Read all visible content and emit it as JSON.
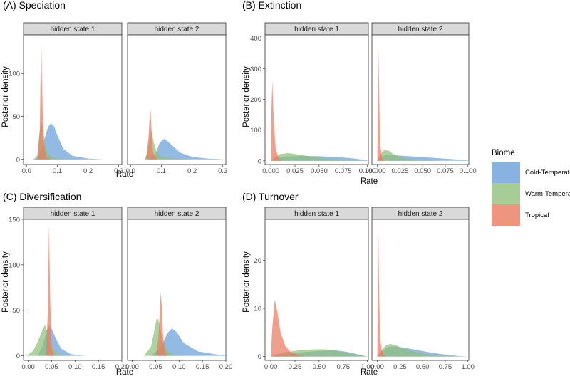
{
  "colors": {
    "Cold-Temperate": "#6a9fd8",
    "Warm-Temperate": "#8fc07a",
    "Tropical": "#ea7a60"
  },
  "legend": {
    "title": "Biome",
    "items": [
      "Cold-Temperate",
      "Warm-Temperate",
      "Tropical"
    ]
  },
  "chart_data": [
    {
      "type": "area",
      "title": "(A) Speciation",
      "xlabel": "Rate",
      "ylabel": "Posterior density",
      "xlim": [
        -0.01,
        0.31
      ],
      "ylim": [
        -6,
        145
      ],
      "xticks": [
        0.0,
        0.1,
        0.2,
        0.3
      ],
      "xtick_labels": [
        "0.0",
        "0.1",
        "0.2",
        "0.3"
      ],
      "yticks": [
        0,
        50,
        100
      ],
      "facets": [
        {
          "label": "hidden state 1",
          "series": [
            {
              "name": "Cold-Temperate",
              "x": [
                0.02,
                0.04,
                0.055,
                0.07,
                0.08,
                0.09,
                0.1,
                0.12,
                0.15,
                0.2,
                0.25
              ],
              "y": [
                0,
                3,
                20,
                38,
                42,
                38,
                28,
                12,
                4,
                1,
                0
              ]
            },
            {
              "name": "Warm-Temperate",
              "x": [
                0.025,
                0.035,
                0.042,
                0.047,
                0.052,
                0.06,
                0.07,
                0.09,
                0.12,
                0.2
              ],
              "y": [
                0,
                5,
                30,
                44,
                40,
                18,
                6,
                1.5,
                0.5,
                0
              ]
            },
            {
              "name": "Tropical",
              "x": [
                0.035,
                0.043,
                0.046,
                0.048,
                0.05,
                0.055,
                0.065,
                0.08
              ],
              "y": [
                0,
                35,
                110,
                135,
                90,
                20,
                2,
                0
              ]
            }
          ]
        },
        {
          "label": "hidden state 2",
          "series": [
            {
              "name": "Cold-Temperate",
              "x": [
                0.06,
                0.08,
                0.095,
                0.11,
                0.13,
                0.16,
                0.2,
                0.25,
                0.3
              ],
              "y": [
                0,
                5,
                20,
                24,
                18,
                8,
                3,
                1,
                0.2
              ]
            },
            {
              "name": "Warm-Temperate",
              "x": [
                0.045,
                0.055,
                0.062,
                0.068,
                0.075,
                0.085,
                0.1,
                0.14,
                0.2
              ],
              "y": [
                0,
                8,
                25,
                33,
                20,
                8,
                3,
                1,
                0
              ]
            },
            {
              "name": "Tropical",
              "x": [
                0.05,
                0.058,
                0.062,
                0.065,
                0.068,
                0.073,
                0.085
              ],
              "y": [
                0,
                25,
                50,
                58,
                35,
                8,
                0
              ]
            }
          ]
        }
      ]
    },
    {
      "type": "area",
      "title": "(B) Extinction",
      "xlabel": "Rate",
      "ylabel": "Posterior density",
      "xlim": [
        -0.006,
        0.101
      ],
      "ylim": [
        -12,
        410
      ],
      "xticks": [
        0.0,
        0.025,
        0.05,
        0.075,
        0.1
      ],
      "xtick_labels": [
        "0.000",
        "0.025",
        "0.050",
        "0.075",
        "0.100"
      ],
      "yticks": [
        0,
        100,
        200,
        300,
        400
      ],
      "facets": [
        {
          "label": "hidden state 1",
          "series": [
            {
              "name": "Cold-Temperate",
              "x": [
                0.0,
                0.005,
                0.015,
                0.03,
                0.05,
                0.07,
                0.085,
                0.1
              ],
              "y": [
                0,
                8,
                14,
                16,
                15,
                12,
                8,
                2
              ]
            },
            {
              "name": "Warm-Temperate",
              "x": [
                0.0,
                0.004,
                0.01,
                0.018,
                0.03,
                0.045,
                0.06,
                0.08,
                0.1
              ],
              "y": [
                0,
                12,
                22,
                25,
                20,
                12,
                6,
                2,
                0
              ]
            },
            {
              "name": "Tropical",
              "x": [
                0.0,
                0.0005,
                0.0015,
                0.003,
                0.005,
                0.008,
                0.012
              ],
              "y": [
                0,
                150,
                260,
                130,
                40,
                8,
                0
              ]
            }
          ]
        },
        {
          "label": "hidden state 2",
          "series": [
            {
              "name": "Cold-Temperate",
              "x": [
                0.0,
                0.004,
                0.01,
                0.02,
                0.04,
                0.06,
                0.08,
                0.1
              ],
              "y": [
                0,
                14,
                20,
                18,
                14,
                10,
                6,
                2
              ]
            },
            {
              "name": "Warm-Temperate",
              "x": [
                0.0,
                0.003,
                0.008,
                0.013,
                0.02,
                0.03,
                0.05,
                0.07
              ],
              "y": [
                0,
                20,
                36,
                32,
                18,
                8,
                2,
                0
              ]
            },
            {
              "name": "Tropical",
              "x": [
                0.0,
                0.0005,
                0.001,
                0.002,
                0.003,
                0.005,
                0.008
              ],
              "y": [
                0,
                200,
                380,
                220,
                60,
                10,
                0
              ]
            }
          ]
        }
      ]
    },
    {
      "type": "area",
      "title": "(C) Diversification",
      "xlabel": "Rate",
      "ylabel": "Posterior density",
      "xlim": [
        -0.01,
        0.2
      ],
      "ylim": [
        -5,
        150
      ],
      "xticks": [
        0.0,
        0.05,
        0.1,
        0.15,
        0.2
      ],
      "xtick_labels": [
        "0.00",
        "0.05",
        "0.10",
        "0.15",
        "0.20"
      ],
      "yticks": [
        0,
        50,
        100,
        150
      ],
      "facets": [
        {
          "label": "hidden state 1",
          "series": [
            {
              "name": "Cold-Temperate",
              "x": [
                0.02,
                0.03,
                0.04,
                0.045,
                0.05,
                0.06,
                0.07,
                0.09,
                0.12
              ],
              "y": [
                0,
                10,
                28,
                33,
                30,
                18,
                8,
                2,
                0
              ]
            },
            {
              "name": "Warm-Temperate",
              "x": [
                -0.005,
                0.01,
                0.02,
                0.03,
                0.036,
                0.042,
                0.05,
                0.06,
                0.08
              ],
              "y": [
                0,
                5,
                15,
                28,
                34,
                25,
                10,
                3,
                0
              ]
            },
            {
              "name": "Tropical",
              "x": [
                0.038,
                0.042,
                0.0445,
                0.047,
                0.05,
                0.054
              ],
              "y": [
                0,
                50,
                143,
                60,
                10,
                0
              ]
            }
          ]
        },
        {
          "label": "hidden state 2",
          "series": [
            {
              "name": "Cold-Temperate",
              "x": [
                0.04,
                0.06,
                0.075,
                0.085,
                0.095,
                0.11,
                0.14,
                0.18,
                0.2
              ],
              "y": [
                0,
                8,
                25,
                30,
                26,
                14,
                5,
                1.5,
                0.5
              ]
            },
            {
              "name": "Warm-Temperate",
              "x": [
                0.025,
                0.04,
                0.048,
                0.053,
                0.058,
                0.065,
                0.075,
                0.09,
                0.11
              ],
              "y": [
                0,
                10,
                30,
                43,
                35,
                15,
                5,
                1,
                0
              ]
            },
            {
              "name": "Tropical",
              "x": [
                0.05,
                0.056,
                0.059,
                0.061,
                0.063,
                0.066,
                0.07,
                0.075
              ],
              "y": [
                0,
                20,
                50,
                70,
                55,
                20,
                4,
                0
              ]
            }
          ]
        }
      ]
    },
    {
      "type": "area",
      "title": "(D) Turnover",
      "xlabel": "Rate",
      "ylabel": "Posterior density",
      "xlim": [
        -0.06,
        1.01
      ],
      "ylim": [
        -0.8,
        28.5
      ],
      "xticks": [
        0.0,
        0.25,
        0.5,
        0.75,
        1.0
      ],
      "xtick_labels": [
        "0.00",
        "0.25",
        "0.50",
        "0.75",
        "1.00"
      ],
      "yticks": [
        0,
        10,
        20
      ],
      "facets": [
        {
          "label": "hidden state 1",
          "series": [
            {
              "name": "Cold-Temperate",
              "x": [
                0.0,
                0.1,
                0.25,
                0.4,
                0.55,
                0.65,
                0.75,
                0.85,
                0.95,
                1.0
              ],
              "y": [
                0,
                0.3,
                0.7,
                1.0,
                1.2,
                1.3,
                1.1,
                0.7,
                0.2,
                0
              ]
            },
            {
              "name": "Warm-Temperate",
              "x": [
                0.0,
                0.05,
                0.15,
                0.3,
                0.45,
                0.55,
                0.65,
                0.8,
                0.95,
                1.0
              ],
              "y": [
                0,
                0.4,
                0.9,
                1.3,
                1.5,
                1.5,
                1.3,
                0.7,
                0.2,
                0
              ]
            },
            {
              "name": "Tropical",
              "x": [
                0.0,
                0.015,
                0.04,
                0.07,
                0.1,
                0.15,
                0.2,
                0.28,
                0.35
              ],
              "y": [
                0,
                6,
                11.8,
                9,
                5,
                2.2,
                1,
                0.3,
                0
              ]
            }
          ]
        },
        {
          "label": "hidden state 2",
          "series": [
            {
              "name": "Cold-Temperate",
              "x": [
                0.0,
                0.05,
                0.12,
                0.2,
                0.3,
                0.45,
                0.6,
                0.75,
                0.9,
                1.0
              ],
              "y": [
                0,
                1.0,
                2.0,
                2.1,
                1.8,
                1.3,
                0.8,
                0.4,
                0.1,
                0
              ]
            },
            {
              "name": "Warm-Temperate",
              "x": [
                0.0,
                0.04,
                0.1,
                0.15,
                0.22,
                0.32,
                0.45,
                0.6,
                0.75,
                0.9
              ],
              "y": [
                0,
                1.2,
                2.4,
                2.6,
                2.2,
                1.5,
                0.8,
                0.3,
                0.1,
                0
              ]
            },
            {
              "name": "Tropical",
              "x": [
                0.0,
                0.004,
                0.01,
                0.018,
                0.028,
                0.045,
                0.07,
                0.1
              ],
              "y": [
                0,
                15,
                27,
                16,
                5,
                1.5,
                0.3,
                0
              ]
            }
          ]
        }
      ]
    }
  ]
}
